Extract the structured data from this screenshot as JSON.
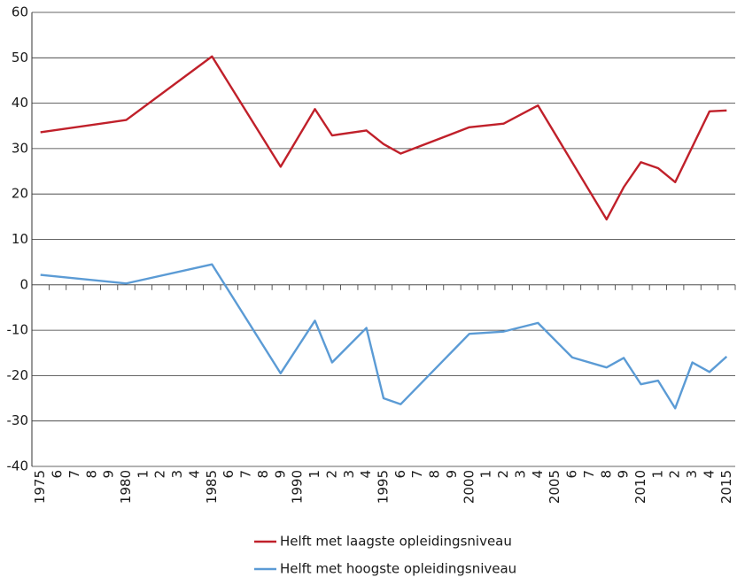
{
  "chart_data": {
    "type": "line",
    "series": [
      {
        "name": "Helft met laagste opleidingsniveau",
        "color": "#c0202a",
        "x": [
          1975,
          1980,
          1985,
          1989,
          1991,
          1992,
          1994,
          1995,
          1996,
          2000,
          2002,
          2004,
          2008,
          2009,
          2010,
          2011,
          2012,
          2014,
          2015
        ],
        "values": [
          33.6,
          36.3,
          50.3,
          26,
          38.7,
          32.9,
          34,
          31,
          28.9,
          34.7,
          35.5,
          39.5,
          14.4,
          21.5,
          27,
          25.7,
          22.6,
          38.2,
          38.4
        ]
      },
      {
        "name": "Helft met hoogste opleidingsniveau",
        "color": "#5b9bd5",
        "x": [
          1975,
          1980,
          1985,
          1989,
          1991,
          1992,
          1994,
          1995,
          1996,
          2000,
          2002,
          2004,
          2006,
          2008,
          2009,
          2010,
          2011,
          2012,
          2013,
          2014,
          2015
        ],
        "values": [
          2.2,
          0.3,
          4.5,
          -19.5,
          -7.9,
          -17.1,
          -9.5,
          -25,
          -26.3,
          -10.8,
          -10.3,
          -8.4,
          -16,
          -18.2,
          -16.1,
          -21.9,
          -21.1,
          -27.2,
          -17.1,
          -19.2,
          -15.8
        ]
      }
    ],
    "xlim": [
      1974.5,
      2015.5
    ],
    "xticks": [
      1975,
      {
        "value": 1976,
        "label": "6"
      },
      {
        "value": 1977,
        "label": "7"
      },
      {
        "value": 1978,
        "label": "8"
      },
      {
        "value": 1979,
        "label": "9"
      },
      1980,
      {
        "value": 1981,
        "label": "1"
      },
      {
        "value": 1982,
        "label": "2"
      },
      {
        "value": 1983,
        "label": "3"
      },
      {
        "value": 1984,
        "label": "4"
      },
      1985,
      {
        "value": 1986,
        "label": "6"
      },
      {
        "value": 1987,
        "label": "7"
      },
      {
        "value": 1988,
        "label": "8"
      },
      {
        "value": 1989,
        "label": "9"
      },
      1990,
      {
        "value": 1991,
        "label": "1"
      },
      {
        "value": 1992,
        "label": "2"
      },
      {
        "value": 1993,
        "label": "3"
      },
      {
        "value": 1994,
        "label": "4"
      },
      1995,
      {
        "value": 1996,
        "label": "6"
      },
      {
        "value": 1997,
        "label": "7"
      },
      {
        "value": 1998,
        "label": "8"
      },
      {
        "value": 1999,
        "label": "9"
      },
      2000,
      {
        "value": 2001,
        "label": "1"
      },
      {
        "value": 2002,
        "label": "2"
      },
      {
        "value": 2003,
        "label": "3"
      },
      {
        "value": 2004,
        "label": "4"
      },
      2005,
      {
        "value": 2006,
        "label": "6"
      },
      {
        "value": 2007,
        "label": "7"
      },
      {
        "value": 2008,
        "label": "8"
      },
      {
        "value": 2009,
        "label": "9"
      },
      2010,
      {
        "value": 2011,
        "label": "1"
      },
      {
        "value": 2012,
        "label": "2"
      },
      {
        "value": 2013,
        "label": "3"
      },
      {
        "value": 2014,
        "label": "4"
      },
      2015
    ],
    "ylim": [
      -40,
      60
    ],
    "yticks": [
      -40,
      -30,
      -20,
      -10,
      0,
      10,
      20,
      30,
      40,
      50,
      60
    ],
    "grid": true
  }
}
